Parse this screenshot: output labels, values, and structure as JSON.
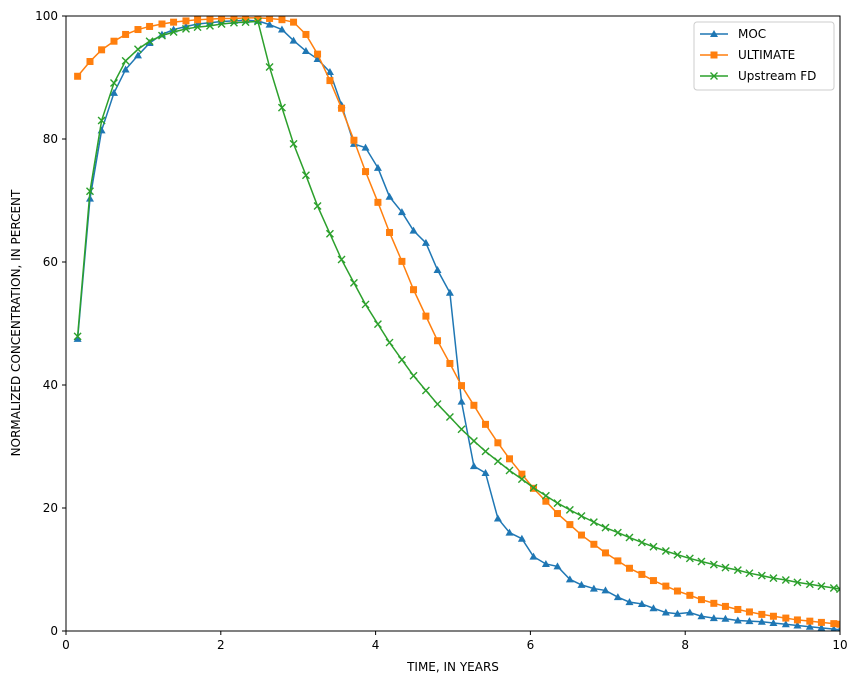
{
  "chart_data": {
    "type": "line",
    "title": "",
    "xlabel": "TIME, IN YEARS",
    "ylabel": "NORMALIZED CONCENTRATION, IN PERCENT",
    "xlim": [
      0,
      10
    ],
    "ylim": [
      0,
      100
    ],
    "xticks": [
      0,
      2,
      4,
      6,
      8,
      10
    ],
    "yticks": [
      0,
      20,
      40,
      60,
      80,
      100
    ],
    "xtick_labels": [
      "0",
      "2",
      "4",
      "6",
      "8",
      "10"
    ],
    "ytick_labels": [
      "0",
      "20",
      "40",
      "60",
      "80",
      "100"
    ],
    "grid": false,
    "legend_position": "top-right",
    "x": [
      0.15,
      0.31,
      0.46,
      0.62,
      0.77,
      0.93,
      1.08,
      1.24,
      1.39,
      1.55,
      1.7,
      1.86,
      2.01,
      2.17,
      2.32,
      2.48,
      2.63,
      2.79,
      2.94,
      3.1,
      3.25,
      3.41,
      3.56,
      3.72,
      3.87,
      4.03,
      4.18,
      4.34,
      4.49,
      4.65,
      4.8,
      4.96,
      5.11,
      5.27,
      5.42,
      5.58,
      5.73,
      5.89,
      6.04,
      6.2,
      6.35,
      6.51,
      6.66,
      6.82,
      6.97,
      7.13,
      7.28,
      7.44,
      7.59,
      7.75,
      7.9,
      8.06,
      8.21,
      8.37,
      8.52,
      8.68,
      8.83,
      8.99,
      9.14,
      9.3,
      9.45,
      9.61,
      9.76,
      9.92,
      10.0
    ],
    "series": [
      {
        "name": "MOC",
        "color": "#1f77b4",
        "marker": "triangle",
        "values": [
          47.5,
          70.3,
          81.4,
          87.5,
          91.3,
          93.6,
          95.6,
          97.0,
          97.8,
          98.3,
          98.7,
          98.9,
          99.1,
          99.2,
          99.3,
          99.2,
          98.6,
          97.8,
          96.0,
          94.3,
          93.0,
          90.9,
          85.5,
          79.2,
          78.6,
          75.3,
          70.6,
          68.1,
          65.1,
          63.1,
          58.7,
          55.0,
          37.3,
          26.8,
          25.7,
          18.3,
          16.0,
          15.0,
          12.1,
          10.9,
          10.5,
          8.4,
          7.5,
          6.9,
          6.6,
          5.5,
          4.7,
          4.4,
          3.7,
          3.0,
          2.8,
          3.0,
          2.4,
          2.1,
          2.0,
          1.7,
          1.6,
          1.5,
          1.3,
          1.1,
          0.9,
          0.7,
          0.5,
          0.3,
          0.2
        ]
      },
      {
        "name": "ULTIMATE",
        "color": "#ff7f0e",
        "marker": "square",
        "values": [
          90.2,
          92.6,
          94.5,
          95.9,
          97.0,
          97.8,
          98.3,
          98.7,
          99.0,
          99.2,
          99.4,
          99.5,
          99.6,
          99.6,
          99.7,
          99.7,
          99.6,
          99.4,
          99.0,
          97.0,
          93.8,
          89.5,
          85.0,
          79.8,
          74.7,
          69.7,
          64.8,
          60.1,
          55.5,
          51.2,
          47.2,
          43.5,
          39.9,
          36.7,
          33.6,
          30.6,
          28.0,
          25.5,
          23.2,
          21.1,
          19.1,
          17.3,
          15.6,
          14.1,
          12.7,
          11.4,
          10.2,
          9.2,
          8.2,
          7.3,
          6.5,
          5.8,
          5.1,
          4.5,
          4.0,
          3.5,
          3.1,
          2.7,
          2.4,
          2.1,
          1.8,
          1.6,
          1.4,
          1.2,
          1.1
        ]
      },
      {
        "name": "Upstream FD",
        "color": "#2ca02c",
        "marker": "x",
        "values": [
          47.9,
          71.5,
          83.0,
          89.1,
          92.7,
          94.6,
          95.9,
          96.8,
          97.4,
          97.9,
          98.2,
          98.4,
          98.7,
          98.9,
          99.0,
          99.1,
          91.7,
          85.1,
          79.2,
          74.1,
          69.1,
          64.6,
          60.4,
          56.6,
          53.1,
          49.9,
          46.9,
          44.1,
          41.5,
          39.1,
          36.9,
          34.8,
          32.8,
          30.9,
          29.2,
          27.6,
          26.1,
          24.7,
          23.3,
          22.0,
          20.8,
          19.7,
          18.7,
          17.7,
          16.8,
          16.0,
          15.2,
          14.4,
          13.7,
          13.0,
          12.4,
          11.8,
          11.3,
          10.8,
          10.3,
          9.9,
          9.4,
          9.0,
          8.6,
          8.3,
          7.9,
          7.6,
          7.3,
          7.0,
          6.8
        ]
      }
    ]
  }
}
